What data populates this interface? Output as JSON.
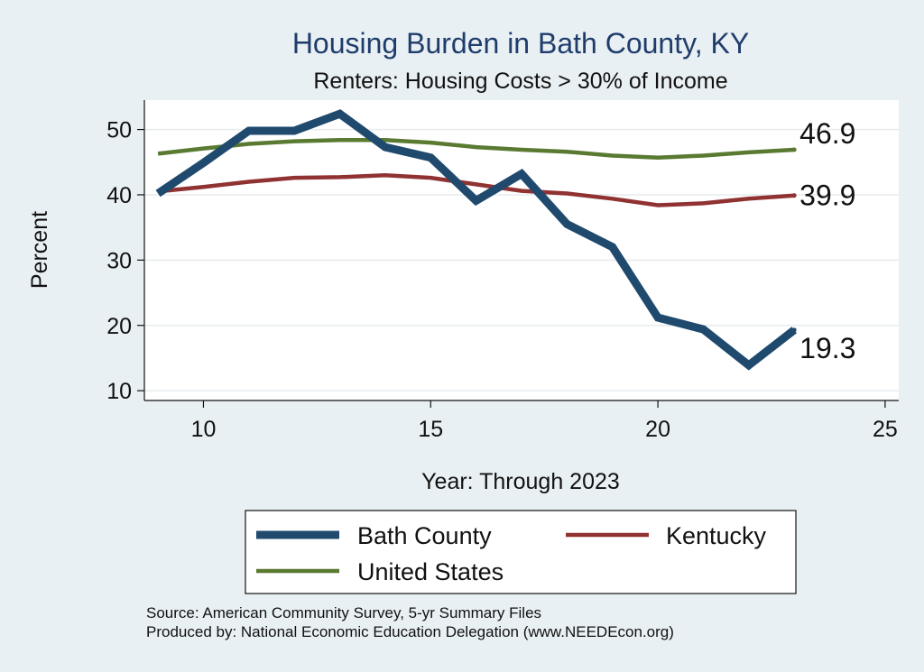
{
  "chart_data": {
    "type": "line",
    "title": "Housing Burden in Bath County, KY",
    "subtitle": "Renters: Housing Costs > 30% of Income",
    "xlabel": "Year: Through 2023",
    "ylabel": "Percent",
    "xlim": [
      8.7,
      25.3
    ],
    "ylim": [
      8.5,
      54.5
    ],
    "xticks": [
      10,
      15,
      20,
      25
    ],
    "yticks": [
      10,
      20,
      30,
      40,
      50
    ],
    "grid": true,
    "legend_position": "bottom",
    "series": [
      {
        "name": "Bath County",
        "color": "#1f4a6e",
        "x": [
          9,
          10,
          11,
          12,
          13,
          14,
          15,
          16,
          17,
          18,
          19,
          20,
          21,
          22,
          23
        ],
        "values": [
          40.2,
          44.9,
          49.8,
          49.8,
          52.4,
          47.3,
          45.7,
          39.1,
          43.2,
          35.5,
          32.0,
          21.2,
          19.4,
          13.9,
          19.3
        ],
        "end_label": "19.3"
      },
      {
        "name": "Kentucky",
        "color": "#913232",
        "x": [
          9,
          10,
          11,
          12,
          13,
          14,
          15,
          16,
          17,
          18,
          19,
          20,
          21,
          22,
          23
        ],
        "values": [
          40.5,
          41.2,
          42.0,
          42.6,
          42.7,
          43.0,
          42.6,
          41.6,
          40.6,
          40.2,
          39.4,
          38.4,
          38.7,
          39.4,
          39.9
        ],
        "end_label": "39.9"
      },
      {
        "name": "United States",
        "color": "#5a7a32",
        "x": [
          9,
          10,
          11,
          12,
          13,
          14,
          15,
          16,
          17,
          18,
          19,
          20,
          21,
          22,
          23
        ],
        "values": [
          46.3,
          47.1,
          47.8,
          48.2,
          48.4,
          48.4,
          48.0,
          47.3,
          46.9,
          46.6,
          46.0,
          45.7,
          46.0,
          46.5,
          46.9
        ],
        "end_label": "46.9"
      }
    ]
  },
  "footer": {
    "source": "Source: American Community Survey, 5-yr Summary Files",
    "produced_by": "Produced by: National Economic Education Delegation (www.NEEDEcon.org)"
  }
}
